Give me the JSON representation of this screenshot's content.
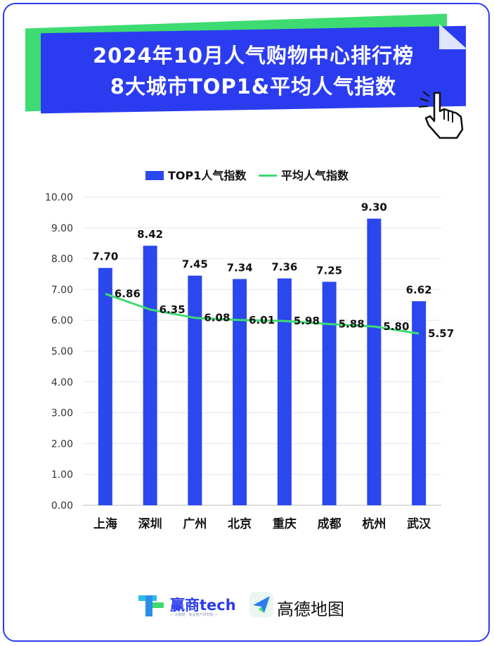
{
  "header": {
    "title_line1": "2024年10月人气购物中心排行榜",
    "title_line2": "8大城市TOP1&平均人气指数"
  },
  "legend": {
    "bar_label": "TOP1人气指数",
    "line_label": "平均人气指数"
  },
  "colors": {
    "bar": "#2b47ee",
    "line": "#3ddb72",
    "grid": "#e6e6e6",
    "border": "#2b3cf0"
  },
  "chart_data": {
    "type": "bar",
    "categories": [
      "上海",
      "深圳",
      "广州",
      "北京",
      "重庆",
      "成都",
      "杭州",
      "武汉"
    ],
    "series": [
      {
        "name": "TOP1人气指数",
        "type": "bar",
        "values": [
          7.7,
          8.42,
          7.45,
          7.34,
          7.36,
          7.25,
          9.3,
          6.62
        ]
      },
      {
        "name": "平均人气指数",
        "type": "line",
        "values": [
          6.86,
          6.35,
          6.08,
          6.01,
          5.98,
          5.88,
          5.8,
          5.57
        ]
      }
    ],
    "ylim": [
      0,
      10
    ],
    "yticks": [
      "0.00",
      "1.00",
      "2.00",
      "3.00",
      "4.00",
      "5.00",
      "6.00",
      "7.00",
      "8.00",
      "9.00",
      "10.00"
    ],
    "grid": true,
    "legend_position": "top"
  },
  "footer": {
    "logo1_name": "赢商tech",
    "logo1_tagline": "— 大数据 · 商业地产研究院 —",
    "logo2_name": "高德地图"
  },
  "icons": [
    "hand-pointer-icon",
    "yingshang-logo-icon",
    "amap-logo-icon"
  ]
}
